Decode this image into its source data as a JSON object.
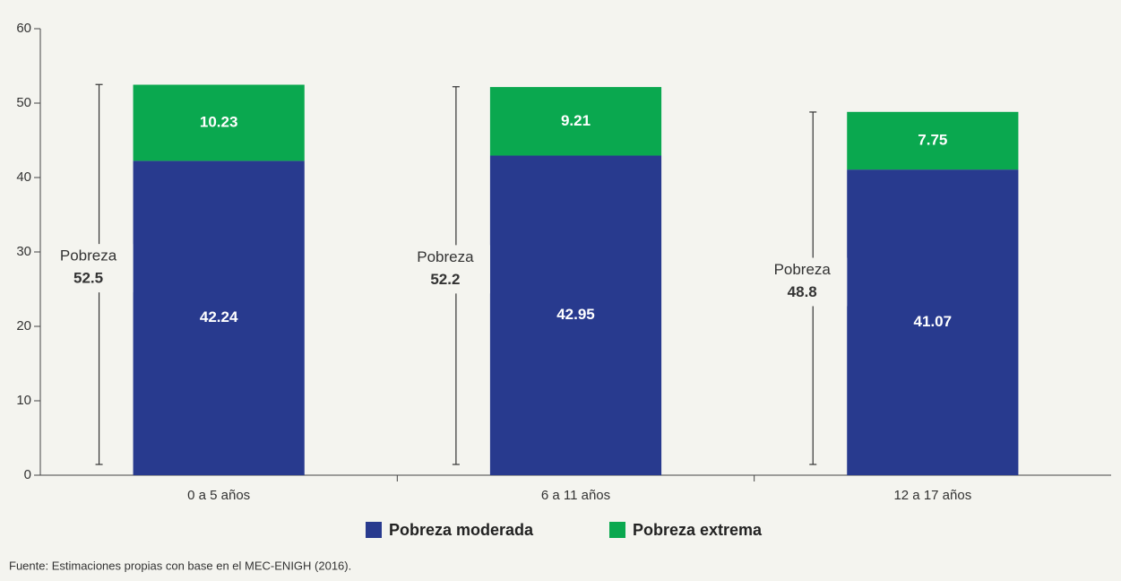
{
  "chart_data": {
    "type": "stacked_bar",
    "categories": [
      "0 a 5 años",
      "6 a 11 años",
      "12 a 17 años"
    ],
    "series": [
      {
        "name": "Pobreza moderada",
        "color": "#283a8e",
        "values": [
          42.24,
          42.95,
          41.07
        ]
      },
      {
        "name": "Pobreza extrema",
        "color": "#0aa84f",
        "values": [
          10.23,
          9.21,
          7.75
        ]
      }
    ],
    "annotations": [
      {
        "label": "Pobreza",
        "value": 52.5
      },
      {
        "label": "Pobreza",
        "value": 52.2
      },
      {
        "label": "Pobreza",
        "value": 48.8
      }
    ],
    "ylim": [
      0,
      60
    ],
    "yticks": [
      0,
      10,
      20,
      30,
      40,
      50,
      60
    ],
    "legend": "bottom",
    "note": "Fuente: Estimaciones propias con base en el MEC-ENIGH (2016)."
  }
}
